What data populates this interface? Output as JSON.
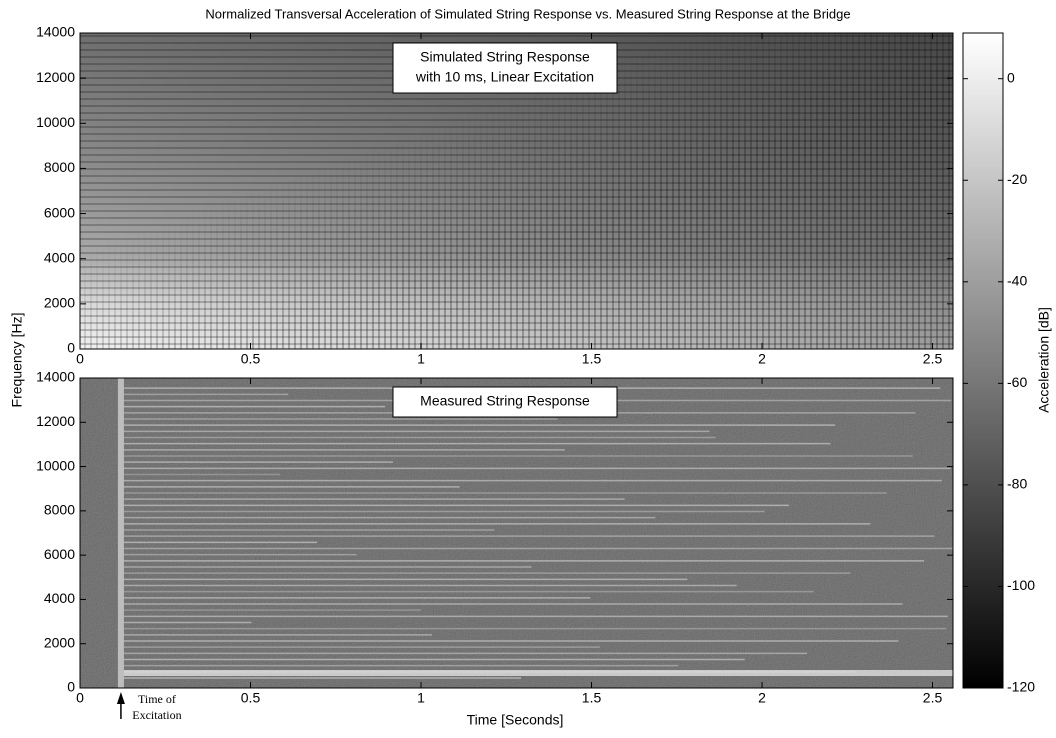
{
  "figure": {
    "title": "Normalized Transversal Acceleration of Simulated String Response vs. Measured String Response at the Bridge",
    "ylabel": "Frequency [Hz]",
    "xlabel": "Time [Seconds]",
    "colorbar": {
      "label": "Acceleration [dB]",
      "lim": [
        -120,
        9
      ],
      "ticks": [
        0,
        -20,
        -40,
        -60,
        -80,
        -100,
        -120
      ]
    }
  },
  "chart_data": [
    {
      "type": "heatmap",
      "style": "simulated",
      "annotation": [
        "Simulated String Response",
        "with 10 ms, Linear Excitation"
      ],
      "xlim": [
        0,
        2.56
      ],
      "xticks": [
        0,
        0.5,
        1,
        1.5,
        2,
        2.5
      ],
      "ylim": [
        0,
        14000
      ],
      "yticks": [
        0,
        2000,
        4000,
        6000,
        8000,
        10000,
        12000,
        14000
      ]
    },
    {
      "type": "heatmap",
      "style": "measured",
      "annotation": [
        "Measured String Response"
      ],
      "excitation_time": 0.12,
      "excitation_label": [
        "Time of",
        "Excitation"
      ],
      "xlim": [
        0,
        2.56
      ],
      "xticks": [
        0,
        0.5,
        1,
        1.5,
        2,
        2.5
      ],
      "ylim": [
        0,
        14000
      ],
      "yticks": [
        0,
        2000,
        4000,
        6000,
        8000,
        10000,
        12000,
        14000
      ]
    }
  ]
}
